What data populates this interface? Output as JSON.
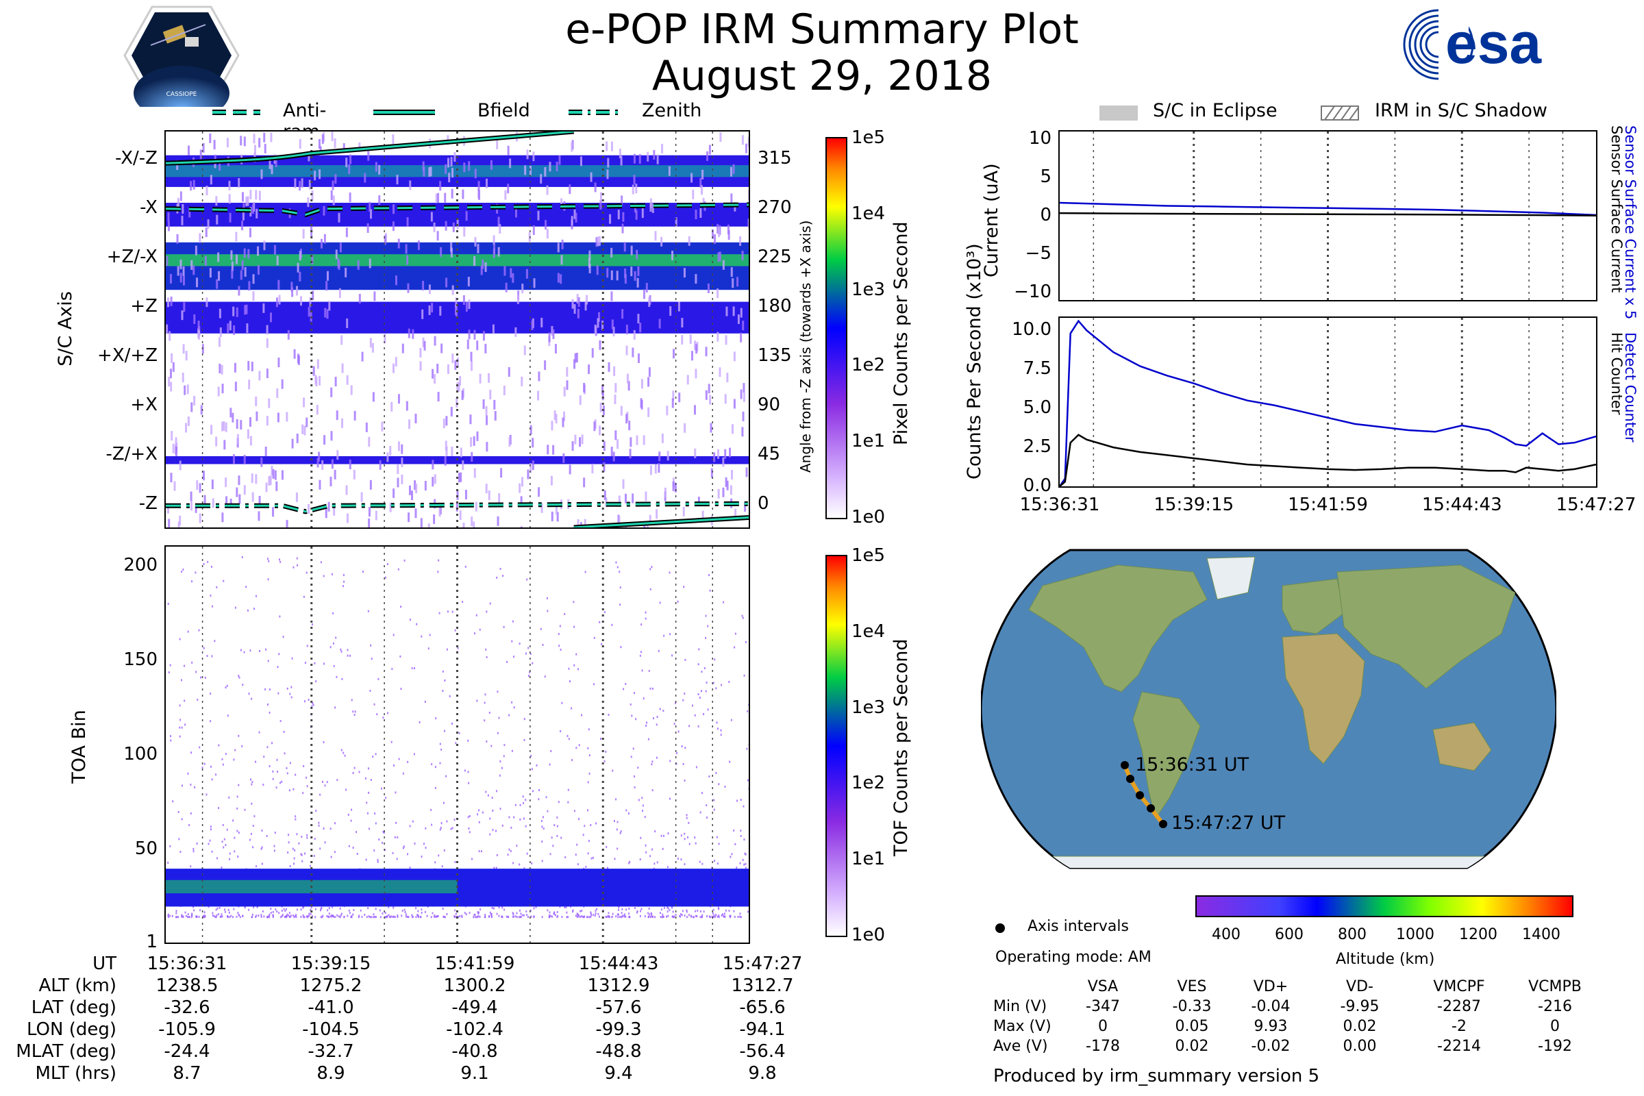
{
  "header": {
    "title": "e-POP IRM Summary Plot",
    "date": "August 29, 2018",
    "mission_logo_text": "CASSIOPE",
    "agency_logo_text": "esa"
  },
  "top_left_legend": {
    "items": [
      {
        "label": "Anti-ram",
        "style": "dashed",
        "color": "#1fd6b0"
      },
      {
        "label": "Bfield",
        "style": "solid",
        "color": "#1fd6b0"
      },
      {
        "label": "Zenith",
        "style": "dashdot",
        "color": "#1fd6b0"
      }
    ]
  },
  "top_right_legend": {
    "items": [
      {
        "label": "S/C in Eclipse",
        "style": "filled",
        "color": "#c8c8c8"
      },
      {
        "label": "IRM in S/C Shadow",
        "style": "hatched",
        "color": "#888888"
      }
    ]
  },
  "colors": {
    "current_blue": "#0000cc",
    "current_black": "#000000",
    "track": "#e8a020"
  },
  "footer": {
    "row_labels": [
      "UT",
      "ALT (km)",
      "LAT (deg)",
      "LON (deg)",
      "MLAT (deg)",
      "MLT (hrs)"
    ],
    "columns": [
      [
        "15:36:31",
        "1238.5",
        "-32.6",
        "-105.9",
        "-24.4",
        "8.7"
      ],
      [
        "15:39:15",
        "1275.2",
        "-41.0",
        "-104.5",
        "-32.7",
        "8.9"
      ],
      [
        "15:41:59",
        "1300.2",
        "-49.4",
        "-102.4",
        "-40.8",
        "9.1"
      ],
      [
        "15:44:43",
        "1312.9",
        "-57.6",
        "-99.3",
        "-48.8",
        "9.4"
      ],
      [
        "15:47:27",
        "1312.7",
        "-65.6",
        "-94.1",
        "-56.4",
        "9.8"
      ]
    ]
  },
  "map": {
    "start_label": "15:36:31 UT",
    "end_label": "15:47:27 UT",
    "colorbar_ticks": [
      "400",
      "600",
      "800",
      "1000",
      "1200",
      "1400"
    ],
    "colorbar_label": "Altitude (km)",
    "axis_intervals_label": "Axis intervals",
    "operating_mode": "Operating mode: AM"
  },
  "voltage_table": {
    "headers": [
      "",
      "VSA",
      "VES",
      "VD+",
      "VD-",
      "VMCPF",
      "VCMPB"
    ],
    "rows": [
      [
        "Min (V)",
        "-347",
        "-0.33",
        "-0.04",
        "-9.95",
        "-2287",
        "-216"
      ],
      [
        "Max (V)",
        "0",
        "0.05",
        "9.93",
        "0.02",
        "-2",
        "0"
      ],
      [
        "Ave (V)",
        "-178",
        "0.02",
        "-0.02",
        "0.00",
        "-2214",
        "-192"
      ]
    ],
    "produced_by": "Produced by irm_summary version 5"
  },
  "chart_data": [
    {
      "type": "heatmap",
      "name": "sc_axis_image",
      "ylabel": "S/C Axis",
      "ylabel_right": "Angle from -Z axis (towards +X axis)",
      "yticks_left": [
        "-X/-Z",
        "-X",
        "+Z/-X",
        "+Z",
        "+X/+Z",
        "+X",
        "-Z/+X",
        "-Z"
      ],
      "yticks_right": [
        "315",
        "270",
        "225",
        "180",
        "135",
        "90",
        "45",
        "0"
      ],
      "colorbar_label": "Pixel Counts per Second",
      "colorbar_ticks": [
        "1e5",
        "1e4",
        "1e3",
        "1e2",
        "1e1",
        "1e0"
      ],
      "grid": true
    },
    {
      "type": "heatmap",
      "name": "toa_image",
      "ylabel": "TOA Bin",
      "yticks": [
        "200",
        "150",
        "100",
        "50",
        "1"
      ],
      "ylim": [
        1,
        210
      ],
      "colorbar_label": "TOF Counts per Second",
      "colorbar_ticks": [
        "1e5",
        "1e4",
        "1e3",
        "1e2",
        "1e1",
        "1e0"
      ],
      "grid": true
    },
    {
      "type": "line",
      "name": "current",
      "ylabel": "Current (uA)",
      "ylim": [
        -11,
        11
      ],
      "yticks": [
        "10",
        "5",
        "0",
        "−5",
        "−10"
      ],
      "right_label_blue": "Sensor Surface Current x 5",
      "right_label_black": "Sensor Surface Current",
      "x": [
        0,
        0.1,
        0.2,
        0.3,
        0.4,
        0.5,
        0.6,
        0.7,
        0.8,
        0.9,
        1.0
      ],
      "series": [
        {
          "name": "Sensor Surface Current x 5",
          "color": "#0000cc",
          "values": [
            1.7,
            1.5,
            1.3,
            1.2,
            1.1,
            1.0,
            0.9,
            0.8,
            0.6,
            0.4,
            0.1
          ]
        },
        {
          "name": "Sensor Surface Current",
          "color": "#000000",
          "values": [
            0.35,
            0.3,
            0.27,
            0.24,
            0.22,
            0.2,
            0.18,
            0.16,
            0.12,
            0.08,
            0.02
          ]
        }
      ]
    },
    {
      "type": "line",
      "name": "counts",
      "ylabel": "Counts Per Second (x10³)",
      "ylim": [
        0,
        10.8
      ],
      "yticks": [
        "10.0",
        "7.5",
        "5.0",
        "2.5",
        "0.0"
      ],
      "xticks": [
        "15:36:31",
        "15:39:15",
        "15:41:59",
        "15:44:43",
        "15:47:27"
      ],
      "right_label_blue": "Detect Counter",
      "right_label_black": "Hit Counter",
      "x": [
        0,
        0.01,
        0.02,
        0.035,
        0.05,
        0.1,
        0.15,
        0.2,
        0.25,
        0.3,
        0.35,
        0.4,
        0.45,
        0.5,
        0.55,
        0.6,
        0.65,
        0.7,
        0.75,
        0.8,
        0.83,
        0.85,
        0.87,
        0.9,
        0.93,
        0.96,
        1.0
      ],
      "series": [
        {
          "name": "Detect Counter",
          "color": "#0000cc",
          "values": [
            0.0,
            0.5,
            9.8,
            10.6,
            10.0,
            8.6,
            7.7,
            7.1,
            6.6,
            6.0,
            5.5,
            5.2,
            4.8,
            4.4,
            4.0,
            3.8,
            3.6,
            3.5,
            3.9,
            3.6,
            3.1,
            2.7,
            2.6,
            3.4,
            2.7,
            2.8,
            3.2
          ]
        },
        {
          "name": "Hit Counter",
          "color": "#000000",
          "values": [
            0.0,
            0.3,
            2.8,
            3.3,
            3.0,
            2.5,
            2.2,
            2.0,
            1.8,
            1.6,
            1.4,
            1.3,
            1.2,
            1.1,
            1.05,
            1.1,
            1.2,
            1.2,
            1.1,
            1.0,
            1.0,
            0.9,
            1.2,
            1.1,
            1.0,
            1.1,
            1.4
          ]
        }
      ]
    }
  ]
}
